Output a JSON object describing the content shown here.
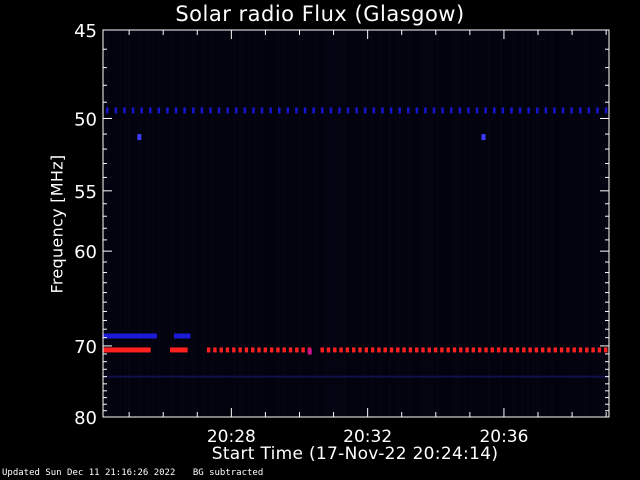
{
  "chart_data": {
    "type": "heatmap",
    "title": "Solar radio Flux (Glasgow)",
    "xlabel": "Start Time (17-Nov-22 20:24:14)",
    "ylabel": "Frequency [MHz]",
    "x_start": "20:24:14",
    "x_end": "20:39:05",
    "x_ticks": [
      "20:28",
      "20:32",
      "20:36"
    ],
    "y_ticks": [
      45,
      50,
      55,
      60,
      70,
      80
    ],
    "y_scale": "reciprocal",
    "ylim": [
      45,
      80
    ],
    "background": "dark blue/black (background subtracted)",
    "features": [
      {
        "name": "",
        "type": "dotted-band",
        "freq_mhz": 49.5,
        "color": "#1515d0"
      },
      {
        "name": "",
        "type": "point",
        "time": "20:25:18",
        "freq_mhz": 51.2,
        "color": "#3c3cff"
      },
      {
        "name": "",
        "type": "point",
        "time": "20:35:24",
        "freq_mhz": 51.2,
        "color": "#3c3cff"
      },
      {
        "name": "",
        "type": "dashed-band",
        "freq_mhz": 68.8,
        "color": "#1a1ad8",
        "segments": [
          [
            "20:24:14",
            "20:25:49"
          ],
          [
            "20:26:19",
            "20:26:48"
          ]
        ]
      },
      {
        "name": "",
        "type": "dashed-band",
        "freq_mhz": 70.5,
        "color": "#ff2020",
        "segments": [
          [
            "20:24:14",
            "20:25:38"
          ],
          [
            "20:26:12",
            "20:26:43"
          ],
          [
            "20:27:17",
            "20:30:18"
          ],
          [
            "20:30:37",
            "20:39:05"
          ]
        ]
      },
      {
        "name": "",
        "type": "point",
        "time": "20:30:18",
        "freq_mhz": 70.7,
        "color": "#d0108a"
      },
      {
        "name": "",
        "type": "faint-band",
        "freq_mhz": 74.0,
        "color": "#101048"
      }
    ]
  },
  "footer": {
    "updated": "Updated Sun Dec 11 21:16:26 2022",
    "note": "BG subtracted"
  }
}
